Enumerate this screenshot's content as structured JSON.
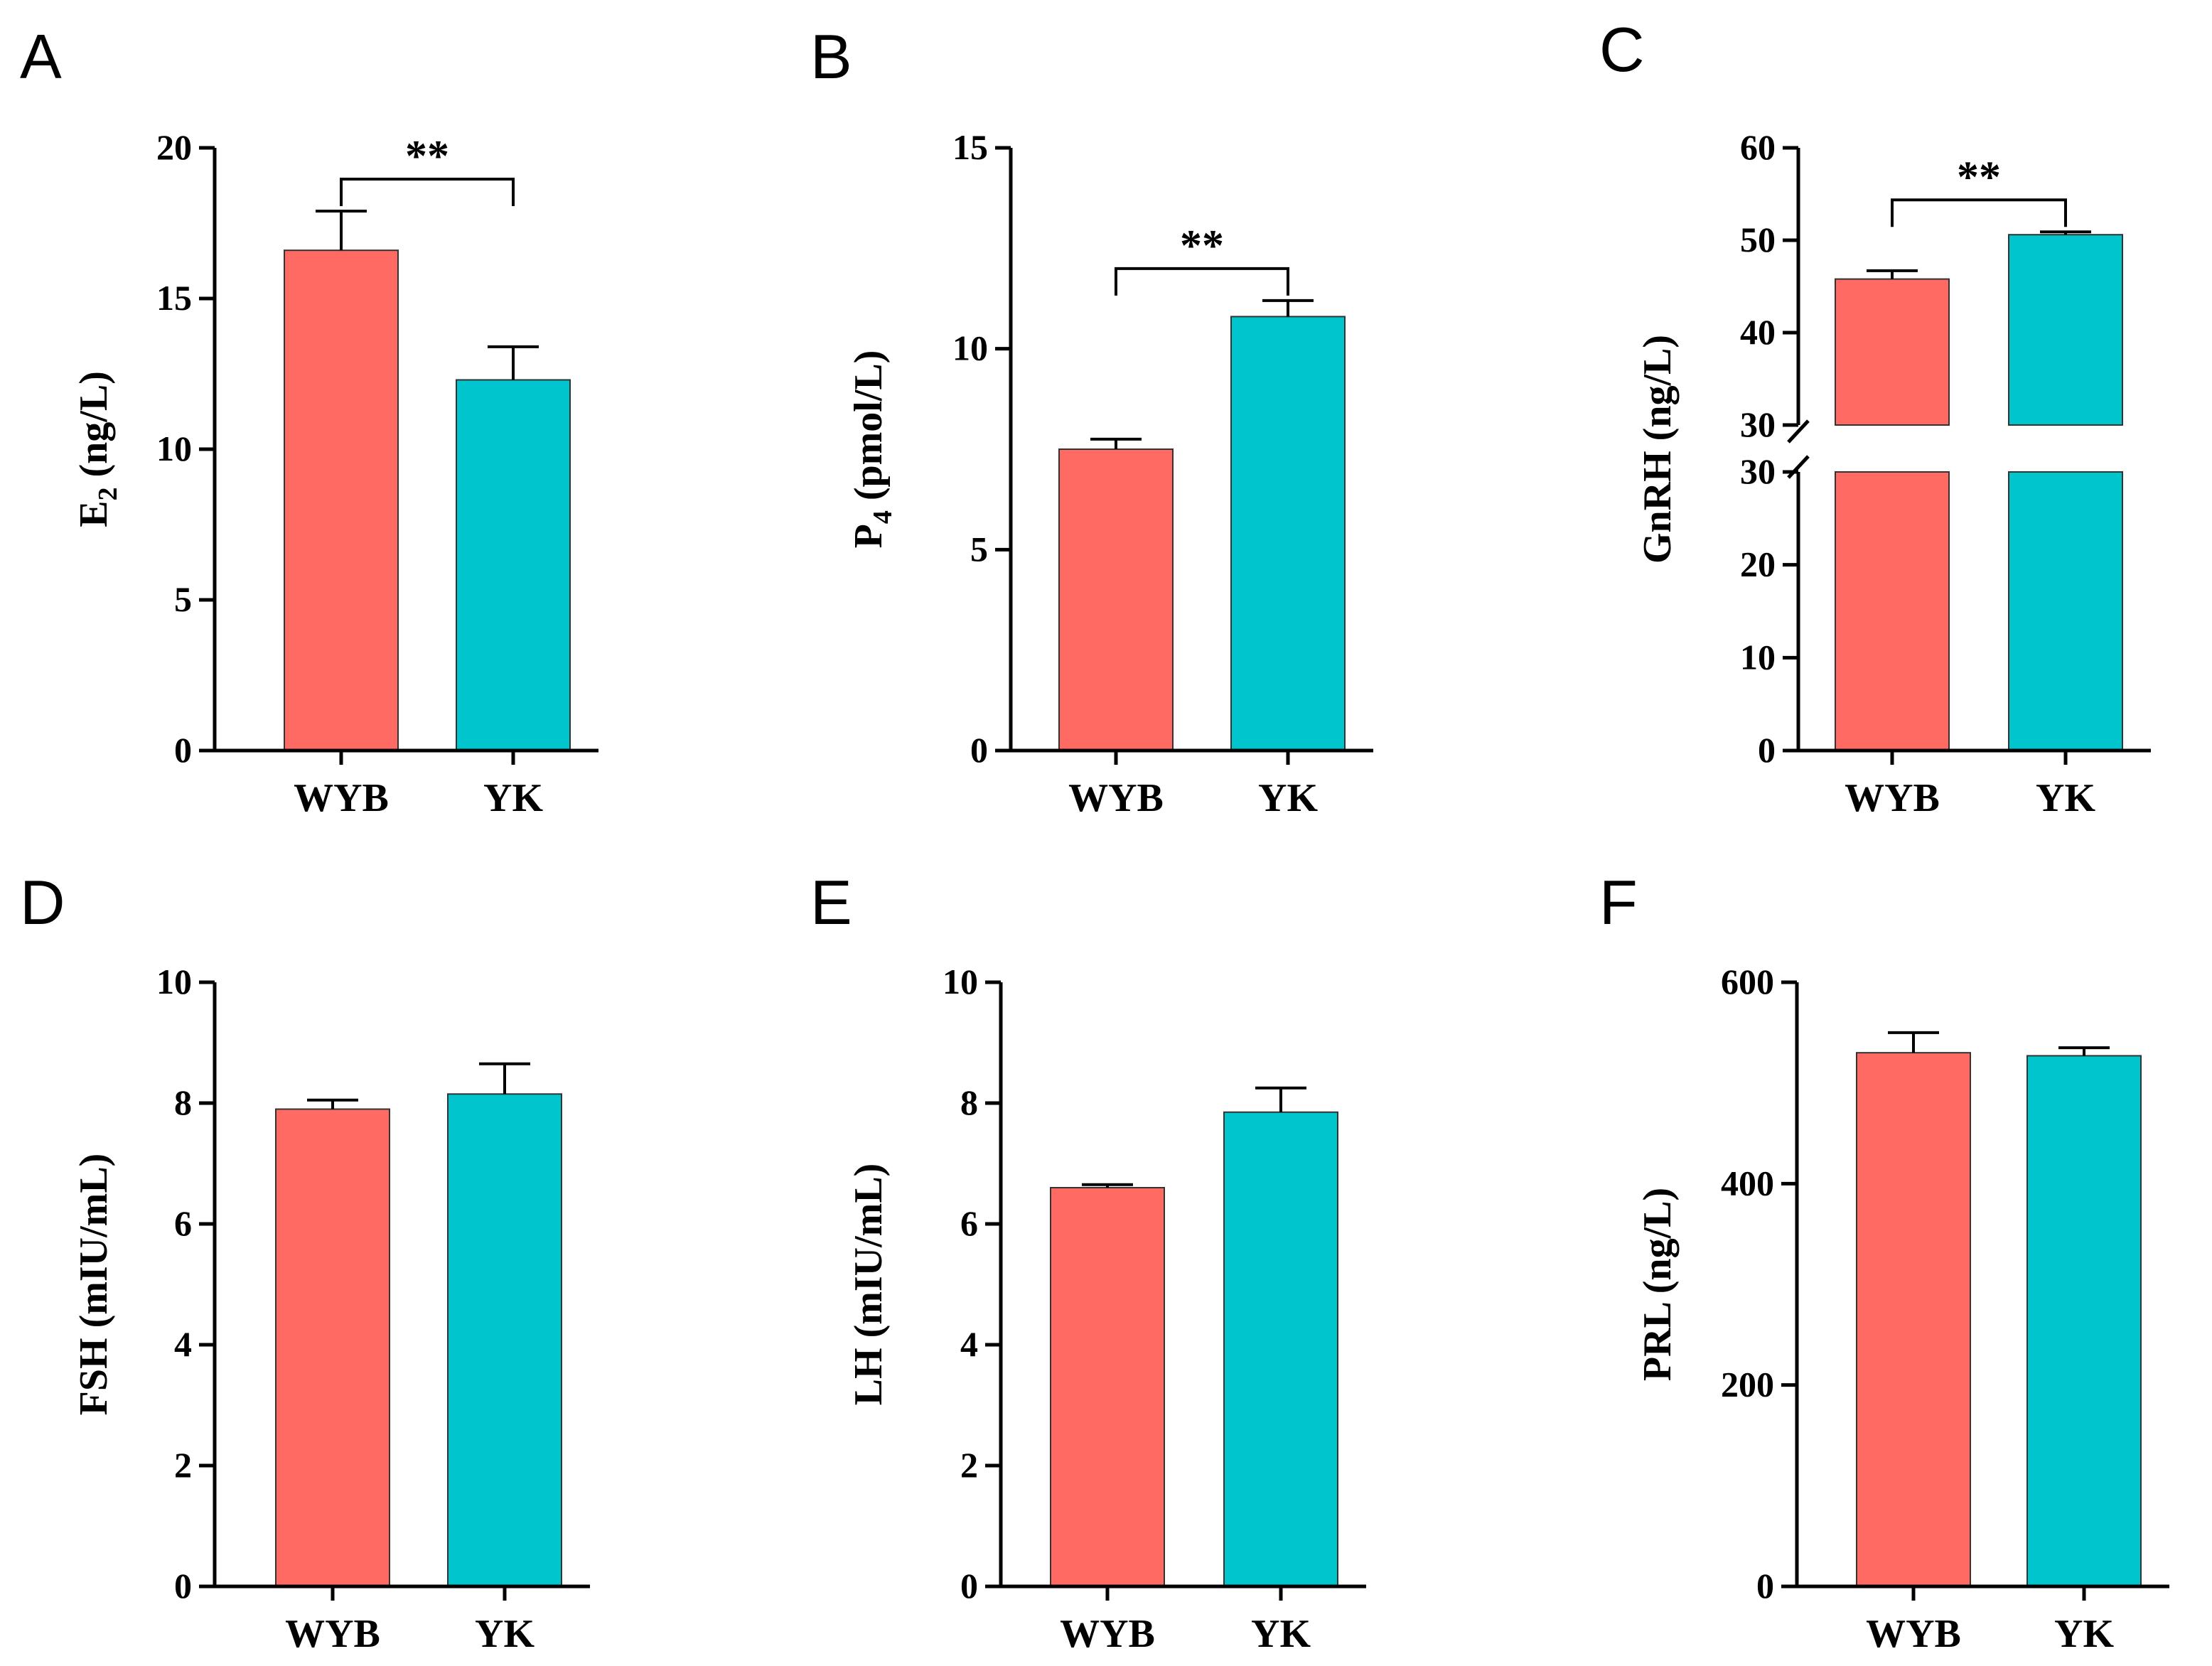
{
  "colors": {
    "WYB": "#FF6B63",
    "YK": "#00C5CC"
  },
  "chart_data": [
    {
      "type": "bar",
      "panel": "A",
      "title_parts": [
        "E",
        "2",
        " (ng/L)"
      ],
      "ylabel": "E2 (ng/L)",
      "categories": [
        "WYB",
        "YK"
      ],
      "values": [
        16.6,
        12.3
      ],
      "errors": [
        1.3,
        1.1
      ],
      "ylim": [
        0,
        20
      ],
      "yticks": [
        0,
        5,
        10,
        15,
        20
      ],
      "significance": "**"
    },
    {
      "type": "bar",
      "panel": "B",
      "title_parts": [
        "P",
        "4",
        " (pmol/L)"
      ],
      "ylabel": "P4 (pmol/L)",
      "categories": [
        "WYB",
        "YK"
      ],
      "values": [
        7.5,
        10.8
      ],
      "errors": [
        0.25,
        0.4
      ],
      "ylim": [
        0,
        15
      ],
      "yticks": [
        0,
        5,
        10,
        15
      ],
      "significance": "**"
    },
    {
      "type": "bar",
      "panel": "C",
      "title_parts": [
        "GnRH (ng/L)",
        "",
        ""
      ],
      "ylabel": "GnRH (ng/L)",
      "categories": [
        "WYB",
        "YK"
      ],
      "values": [
        45.8,
        50.6
      ],
      "errors": [
        0.9,
        0.3
      ],
      "ylim": [
        0,
        60
      ],
      "axis_break": [
        30,
        30
      ],
      "yticks_lower": [
        0,
        10,
        20,
        30
      ],
      "yticks_upper": [
        30,
        40,
        50,
        60
      ],
      "significance": "**"
    },
    {
      "type": "bar",
      "panel": "D",
      "title_parts": [
        "FSH (mIU/mL)",
        "",
        ""
      ],
      "ylabel": "FSH (mIU/mL)",
      "categories": [
        "WYB",
        "YK"
      ],
      "values": [
        7.9,
        8.15
      ],
      "errors": [
        0.15,
        0.5
      ],
      "ylim": [
        0,
        10
      ],
      "yticks": [
        0,
        2,
        4,
        6,
        8,
        10
      ]
    },
    {
      "type": "bar",
      "panel": "E",
      "title_parts": [
        "LH (mIU/mL)",
        "",
        ""
      ],
      "ylabel": "LH (mIU/mL)",
      "categories": [
        "WYB",
        "YK"
      ],
      "values": [
        6.6,
        7.85
      ],
      "errors": [
        0.05,
        0.4
      ],
      "ylim": [
        0,
        10
      ],
      "yticks": [
        0,
        2,
        4,
        6,
        8,
        10
      ]
    },
    {
      "type": "bar",
      "panel": "F",
      "title_parts": [
        "PRL (ng/L)",
        "",
        ""
      ],
      "ylabel": "PRL (ng/L)",
      "categories": [
        "WYB",
        "YK"
      ],
      "values": [
        530,
        527
      ],
      "errors": [
        20,
        8
      ],
      "ylim": [
        0,
        600
      ],
      "yticks": [
        0,
        200,
        400,
        600
      ]
    }
  ]
}
